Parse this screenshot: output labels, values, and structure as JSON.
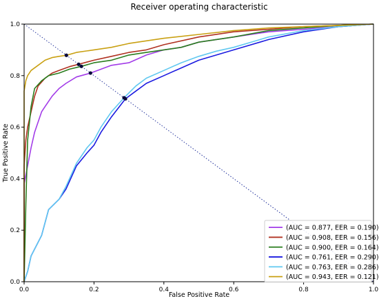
{
  "chart_data": {
    "type": "line",
    "title": "Receiver operating characteristic",
    "xlabel": "False Positive Rate",
    "ylabel": "True Positive Rate",
    "xlim": [
      0,
      1
    ],
    "ylim": [
      0,
      1
    ],
    "x_ticks": [
      "0.0",
      "0.2",
      "0.4",
      "0.6",
      "0.8",
      "1.0"
    ],
    "y_ticks": [
      "0.0",
      "0.2",
      "0.4",
      "0.6",
      "0.8",
      "1.0"
    ],
    "grid": false,
    "legend_position": "lower-right",
    "diagonal": {
      "from": [
        0,
        1
      ],
      "to": [
        1,
        0
      ],
      "style": "dotted",
      "color": "#1f2f9a"
    },
    "series": [
      {
        "label": "(AUC = 0.877, EER = 0.190)",
        "color": "#a23be8",
        "eer_point": [
          0.19,
          0.81
        ],
        "points": [
          [
            0,
            0
          ],
          [
            0,
            0.38
          ],
          [
            0.01,
            0.45
          ],
          [
            0.02,
            0.52
          ],
          [
            0.03,
            0.58
          ],
          [
            0.04,
            0.62
          ],
          [
            0.05,
            0.66
          ],
          [
            0.06,
            0.68
          ],
          [
            0.08,
            0.72
          ],
          [
            0.1,
            0.75
          ],
          [
            0.12,
            0.77
          ],
          [
            0.15,
            0.795
          ],
          [
            0.19,
            0.81
          ],
          [
            0.25,
            0.84
          ],
          [
            0.3,
            0.85
          ],
          [
            0.35,
            0.88
          ],
          [
            0.4,
            0.9
          ],
          [
            0.45,
            0.91
          ],
          [
            0.5,
            0.93
          ],
          [
            0.6,
            0.95
          ],
          [
            0.7,
            0.97
          ],
          [
            0.8,
            0.98
          ],
          [
            0.9,
            0.99
          ],
          [
            1,
            1
          ]
        ]
      },
      {
        "label": "(AUC = 0.908, EER = 0.156)",
        "color": "#b03020",
        "eer_point": [
          0.156,
          0.844
        ],
        "points": [
          [
            0,
            0
          ],
          [
            0,
            0.45
          ],
          [
            0.005,
            0.55
          ],
          [
            0.01,
            0.6
          ],
          [
            0.02,
            0.66
          ],
          [
            0.03,
            0.72
          ],
          [
            0.04,
            0.76
          ],
          [
            0.06,
            0.79
          ],
          [
            0.08,
            0.81
          ],
          [
            0.1,
            0.82
          ],
          [
            0.13,
            0.835
          ],
          [
            0.156,
            0.844
          ],
          [
            0.2,
            0.86
          ],
          [
            0.25,
            0.875
          ],
          [
            0.3,
            0.89
          ],
          [
            0.35,
            0.9
          ],
          [
            0.4,
            0.92
          ],
          [
            0.5,
            0.95
          ],
          [
            0.6,
            0.97
          ],
          [
            0.7,
            0.98
          ],
          [
            0.8,
            0.99
          ],
          [
            0.9,
            0.995
          ],
          [
            1,
            1
          ]
        ]
      },
      {
        "label": "(AUC = 0.900, EER = 0.164)",
        "color": "#2a7d1e",
        "eer_point": [
          0.164,
          0.836
        ],
        "points": [
          [
            0,
            0
          ],
          [
            0.005,
            0.3
          ],
          [
            0.01,
            0.55
          ],
          [
            0.02,
            0.68
          ],
          [
            0.03,
            0.75
          ],
          [
            0.05,
            0.78
          ],
          [
            0.07,
            0.8
          ],
          [
            0.1,
            0.81
          ],
          [
            0.13,
            0.825
          ],
          [
            0.164,
            0.836
          ],
          [
            0.2,
            0.85
          ],
          [
            0.25,
            0.86
          ],
          [
            0.3,
            0.88
          ],
          [
            0.35,
            0.89
          ],
          [
            0.4,
            0.9
          ],
          [
            0.45,
            0.91
          ],
          [
            0.5,
            0.93
          ],
          [
            0.6,
            0.95
          ],
          [
            0.7,
            0.975
          ],
          [
            0.8,
            0.985
          ],
          [
            0.9,
            0.995
          ],
          [
            1,
            1
          ]
        ]
      },
      {
        "label": "(AUC = 0.761, EER = 0.290)",
        "color": "#1a1ae0",
        "eer_point": [
          0.29,
          0.71
        ],
        "points": [
          [
            0,
            0
          ],
          [
            0.005,
            0.02
          ],
          [
            0.01,
            0.04
          ],
          [
            0.02,
            0.1
          ],
          [
            0.05,
            0.18
          ],
          [
            0.07,
            0.28
          ],
          [
            0.1,
            0.32
          ],
          [
            0.12,
            0.36
          ],
          [
            0.15,
            0.45
          ],
          [
            0.18,
            0.5
          ],
          [
            0.2,
            0.53
          ],
          [
            0.22,
            0.58
          ],
          [
            0.25,
            0.64
          ],
          [
            0.29,
            0.71
          ],
          [
            0.32,
            0.74
          ],
          [
            0.35,
            0.77
          ],
          [
            0.4,
            0.8
          ],
          [
            0.45,
            0.83
          ],
          [
            0.5,
            0.86
          ],
          [
            0.55,
            0.88
          ],
          [
            0.6,
            0.9
          ],
          [
            0.7,
            0.94
          ],
          [
            0.8,
            0.97
          ],
          [
            0.9,
            0.99
          ],
          [
            1,
            1
          ]
        ]
      },
      {
        "label": "(AUC = 0.763, EER = 0.286)",
        "color": "#60c8f0",
        "eer_point": [
          0.286,
          0.714
        ],
        "points": [
          [
            0,
            0
          ],
          [
            0.005,
            0.02
          ],
          [
            0.01,
            0.04
          ],
          [
            0.02,
            0.1
          ],
          [
            0.05,
            0.18
          ],
          [
            0.07,
            0.28
          ],
          [
            0.1,
            0.32
          ],
          [
            0.12,
            0.37
          ],
          [
            0.15,
            0.46
          ],
          [
            0.18,
            0.52
          ],
          [
            0.2,
            0.55
          ],
          [
            0.22,
            0.6
          ],
          [
            0.25,
            0.66
          ],
          [
            0.286,
            0.714
          ],
          [
            0.32,
            0.76
          ],
          [
            0.35,
            0.79
          ],
          [
            0.4,
            0.82
          ],
          [
            0.45,
            0.85
          ],
          [
            0.5,
            0.875
          ],
          [
            0.55,
            0.895
          ],
          [
            0.6,
            0.91
          ],
          [
            0.7,
            0.95
          ],
          [
            0.8,
            0.975
          ],
          [
            0.9,
            0.99
          ],
          [
            1,
            1
          ]
        ]
      },
      {
        "label": "(AUC = 0.943, EER = 0.121)",
        "color": "#c9a012",
        "eer_point": [
          0.121,
          0.879
        ],
        "points": [
          [
            0,
            0
          ],
          [
            0,
            0.74
          ],
          [
            0.005,
            0.78
          ],
          [
            0.01,
            0.8
          ],
          [
            0.02,
            0.82
          ],
          [
            0.04,
            0.84
          ],
          [
            0.06,
            0.86
          ],
          [
            0.08,
            0.87
          ],
          [
            0.1,
            0.875
          ],
          [
            0.121,
            0.879
          ],
          [
            0.15,
            0.89
          ],
          [
            0.2,
            0.9
          ],
          [
            0.25,
            0.91
          ],
          [
            0.3,
            0.925
          ],
          [
            0.35,
            0.935
          ],
          [
            0.4,
            0.945
          ],
          [
            0.5,
            0.96
          ],
          [
            0.6,
            0.975
          ],
          [
            0.7,
            0.985
          ],
          [
            0.8,
            0.99
          ],
          [
            0.9,
            0.995
          ],
          [
            1,
            1
          ]
        ]
      }
    ]
  }
}
